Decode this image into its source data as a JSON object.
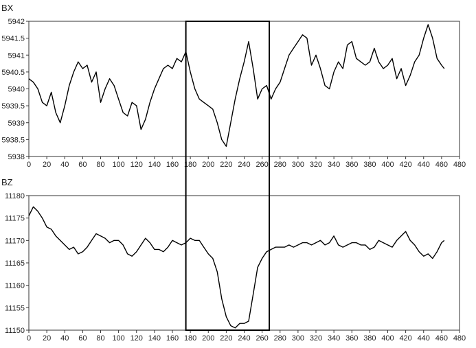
{
  "chart_data": [
    {
      "type": "line",
      "title": "BX",
      "xlabel": "",
      "ylabel": "",
      "xlim": [
        0,
        480
      ],
      "ylim": [
        5938,
        5942
      ],
      "xticks": [
        "0",
        "20",
        "40",
        "60",
        "80",
        "100",
        "120",
        "140",
        "160",
        "180",
        "200",
        "220",
        "240",
        "260",
        "280",
        "300",
        "320",
        "340",
        "360",
        "380",
        "400",
        "420",
        "440",
        "460",
        "480"
      ],
      "yticks": [
        "5938",
        "5938.5",
        "5939",
        "5939.5",
        "5940",
        "5940.5",
        "5941",
        "5941.5",
        "5942"
      ],
      "grid": false,
      "series": [
        {
          "x": [
            0,
            5,
            10,
            15,
            20,
            25,
            30,
            35,
            40,
            45,
            50,
            55,
            60,
            65,
            70,
            75,
            80,
            85,
            90,
            95,
            100,
            105,
            110,
            115,
            120,
            125,
            130,
            135,
            140,
            145,
            150,
            155,
            160,
            165,
            170,
            175,
            180,
            185,
            190,
            195,
            200,
            205,
            210,
            215,
            220,
            225,
            230,
            235,
            240,
            245,
            250,
            255,
            260,
            265,
            270,
            275,
            280,
            285,
            290,
            295,
            300,
            305,
            310,
            315,
            320,
            325,
            330,
            335,
            340,
            345,
            350,
            355,
            360,
            365,
            370,
            375,
            380,
            385,
            390,
            395,
            400,
            405,
            410,
            415,
            420,
            425,
            430,
            435,
            440,
            445,
            450,
            455,
            460,
            463
          ],
          "values": [
            5940.3,
            5940.2,
            5940.0,
            5939.6,
            5939.5,
            5939.9,
            5939.3,
            5939.0,
            5939.5,
            5940.1,
            5940.5,
            5940.8,
            5940.6,
            5940.7,
            5940.2,
            5940.5,
            5939.6,
            5940.0,
            5940.3,
            5940.1,
            5939.7,
            5939.3,
            5939.2,
            5939.6,
            5939.5,
            5938.8,
            5939.1,
            5939.6,
            5940.0,
            5940.3,
            5940.6,
            5940.7,
            5940.6,
            5940.9,
            5940.8,
            5941.1,
            5940.5,
            5940.0,
            5939.7,
            5939.6,
            5939.5,
            5939.4,
            5939.0,
            5938.5,
            5938.3,
            5939.0,
            5939.7,
            5940.3,
            5940.8,
            5941.4,
            5940.6,
            5939.7,
            5940.0,
            5940.1,
            5939.7,
            5940.0,
            5940.2,
            5940.6,
            5941.0,
            5941.2,
            5941.4,
            5941.6,
            5941.5,
            5940.7,
            5941.0,
            5940.6,
            5940.1,
            5940.0,
            5940.5,
            5940.8,
            5940.6,
            5941.3,
            5941.4,
            5940.9,
            5940.8,
            5940.7,
            5940.8,
            5941.2,
            5940.8,
            5940.6,
            5940.7,
            5940.9,
            5940.3,
            5940.6,
            5940.1,
            5940.4,
            5940.8,
            5941.0,
            5941.5,
            5941.9,
            5941.5,
            5940.9,
            5940.7,
            5940.6
          ]
        }
      ]
    },
    {
      "type": "line",
      "title": "BZ",
      "xlabel": "",
      "ylabel": "",
      "xlim": [
        0,
        480
      ],
      "ylim": [
        11150,
        11180
      ],
      "xticks": [
        "0",
        "20",
        "40",
        "60",
        "80",
        "100",
        "120",
        "140",
        "160",
        "180",
        "200",
        "220",
        "240",
        "260",
        "280",
        "300",
        "320",
        "340",
        "360",
        "380",
        "400",
        "420",
        "440",
        "460",
        "480"
      ],
      "yticks": [
        "11150",
        "11155",
        "11160",
        "11165",
        "11170",
        "11175",
        "11180"
      ],
      "grid": false,
      "series": [
        {
          "x": [
            0,
            5,
            10,
            15,
            20,
            25,
            30,
            35,
            40,
            45,
            50,
            55,
            60,
            65,
            70,
            75,
            80,
            85,
            90,
            95,
            100,
            105,
            110,
            115,
            120,
            125,
            130,
            135,
            140,
            145,
            150,
            155,
            160,
            165,
            170,
            175,
            180,
            185,
            190,
            195,
            200,
            205,
            210,
            215,
            220,
            225,
            230,
            235,
            240,
            245,
            250,
            255,
            260,
            265,
            270,
            275,
            280,
            285,
            290,
            295,
            300,
            305,
            310,
            315,
            320,
            325,
            330,
            335,
            340,
            345,
            350,
            355,
            360,
            365,
            370,
            375,
            380,
            385,
            390,
            395,
            400,
            405,
            410,
            415,
            420,
            425,
            430,
            435,
            440,
            445,
            450,
            455,
            460,
            463
          ],
          "values": [
            11175.5,
            11177.5,
            11176.5,
            11175.0,
            11173.0,
            11172.5,
            11171.0,
            11170.0,
            11169.0,
            11168.0,
            11168.5,
            11167.0,
            11167.5,
            11168.5,
            11170.0,
            11171.5,
            11171.0,
            11170.5,
            11169.5,
            11170.0,
            11170.0,
            11169.0,
            11167.0,
            11166.5,
            11167.5,
            11169.0,
            11170.5,
            11169.5,
            11168.0,
            11168.0,
            11167.5,
            11168.5,
            11170.0,
            11169.5,
            11169.0,
            11169.5,
            11170.5,
            11170.0,
            11170.0,
            11168.5,
            11167.0,
            11166.0,
            11163.0,
            11157.0,
            11153.0,
            11151.0,
            11150.5,
            11151.5,
            11151.5,
            11152.0,
            11158.0,
            11164.0,
            11166.0,
            11167.5,
            11168.0,
            11168.5,
            11168.5,
            11168.5,
            11169.0,
            11168.5,
            11169.0,
            11169.5,
            11169.5,
            11169.0,
            11169.5,
            11170.0,
            11169.0,
            11169.5,
            11171.0,
            11169.0,
            11168.5,
            11169.0,
            11169.5,
            11169.5,
            11169.0,
            11169.0,
            11168.0,
            11168.5,
            11170.0,
            11169.5,
            11169.0,
            11168.5,
            11170.0,
            11171.0,
            11172.0,
            11170.0,
            11169.0,
            11167.5,
            11166.5,
            11167.0,
            11166.0,
            11167.5,
            11169.5,
            11170.0
          ]
        }
      ]
    }
  ],
  "highlight": {
    "x_from": 175,
    "x_to": 268
  }
}
